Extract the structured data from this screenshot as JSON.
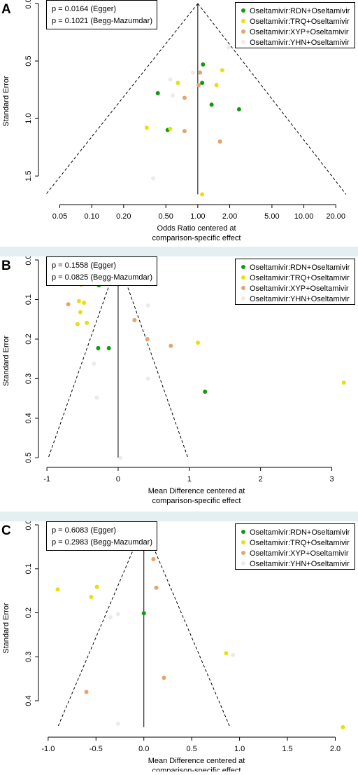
{
  "colors": {
    "RDN": "#109a10",
    "TRQ": "#e8e00a",
    "XYP": "#e3a46e",
    "YHN": "#ebebeb"
  },
  "chart_data": [
    {
      "type": "scatter",
      "panel_label": "A",
      "xlabel": "Odds Ratio centered at",
      "xlabel2": "comparison-specific effect",
      "ylabel": "Standard Error",
      "x_scale": "log",
      "xticks": [
        0.05,
        0.1,
        0.2,
        0.5,
        1.0,
        2.0,
        5.0,
        10.0,
        20.0
      ],
      "xtick_labels": [
        "0.05",
        "0.10",
        "0.20",
        "0.50",
        "1.00",
        "2.00",
        "5.00",
        "10.00",
        "20.00"
      ],
      "xlim": [
        0.035,
        27
      ],
      "yticks": [
        0,
        0.5,
        1,
        1.5
      ],
      "ytick_labels": [
        "0.0",
        "0.5",
        "1.0",
        "1.5"
      ],
      "ylim_reversed": [
        0,
        1.7
      ],
      "funnel": {
        "center": 1.0,
        "apex_se": 0,
        "base_se": 1.66,
        "left": 0.037,
        "right": 25
      },
      "annotations": [
        "p = 0.0164 (Egger)",
        "p = 0.1021 (Begg-Mazumdar)"
      ],
      "legend": [
        "Oseltamivir:RDN+Oseltamivir",
        "Oseltamivir:TRQ+Oseltamivir",
        "Oseltamivir:XYP+Oseltamivir",
        "Oseltamivir:YHN+Oseltamivir"
      ],
      "legend_position": "top-right",
      "series": [
        {
          "name": "Oseltamivir:RDN+Oseltamivir",
          "group": "RDN",
          "points": [
            [
              1.12,
              0.53
            ],
            [
              1.1,
              0.69
            ],
            [
              0.42,
              0.78
            ],
            [
              1.35,
              0.88
            ],
            [
              2.45,
              0.92
            ],
            [
              0.52,
              1.1
            ]
          ]
        },
        {
          "name": "Oseltamivir:TRQ+Oseltamivir",
          "group": "TRQ",
          "points": [
            [
              1.7,
              0.58
            ],
            [
              0.65,
              0.69
            ],
            [
              1.5,
              0.71
            ],
            [
              0.33,
              1.08
            ],
            [
              0.55,
              1.09
            ],
            [
              1.1,
              1.66
            ]
          ]
        },
        {
          "name": "Oseltamivir:XYP+Oseltamivir",
          "group": "XYP",
          "points": [
            [
              1.05,
              0.6
            ],
            [
              1.02,
              0.71
            ],
            [
              0.75,
              0.82
            ],
            [
              0.75,
              1.11
            ],
            [
              1.62,
              1.2
            ]
          ]
        },
        {
          "name": "Oseltamivir:YHN+Oseltamivir",
          "group": "YHN",
          "points": [
            [
              1.95,
              0.38
            ],
            [
              0.9,
              0.6
            ],
            [
              0.55,
              0.66
            ],
            [
              0.58,
              0.8
            ],
            [
              0.38,
              1.52
            ]
          ]
        }
      ]
    },
    {
      "type": "scatter",
      "panel_label": "B",
      "xlabel": "Mean Difference centered at",
      "xlabel2": "comparison-specific effect",
      "ylabel": "Standard Error",
      "x_scale": "linear",
      "xticks": [
        -1,
        0,
        1,
        2,
        3
      ],
      "xtick_labels": [
        "-1",
        "0",
        "1",
        "2",
        "3"
      ],
      "xlim": [
        -1.05,
        3.25
      ],
      "yticks": [
        0,
        0.1,
        0.2,
        0.3,
        0.4,
        0.5
      ],
      "ytick_labels": [
        "0.0",
        "0.1",
        "0.2",
        "0.3",
        "0.4",
        "0.5"
      ],
      "ylim_reversed": [
        0,
        0.51
      ],
      "funnel": {
        "center": 0,
        "apex_se": 0,
        "base_se": 0.5,
        "left": -0.98,
        "right": 0.98
      },
      "annotations": [
        "p = 0.1558 (Egger)",
        "p = 0.0825 (Begg-Mazumdar)"
      ],
      "legend": [
        "Oseltamivir:RDN+Oseltamivir",
        "Oseltamivir:TRQ+Oseltamivir",
        "Oseltamivir:XYP+Oseltamivir",
        "Oseltamivir:YHN+Oseltamivir"
      ],
      "legend_position": "top-right",
      "series": [
        {
          "name": "Oseltamivir:RDN+Oseltamivir",
          "group": "RDN",
          "points": [
            [
              -0.27,
              0.064
            ],
            [
              -0.28,
              0.223
            ],
            [
              -0.13,
              0.223
            ],
            [
              1.22,
              0.333
            ]
          ]
        },
        {
          "name": "Oseltamivir:TRQ+Oseltamivir",
          "group": "TRQ",
          "points": [
            [
              -0.55,
              0.104
            ],
            [
              -0.48,
              0.108
            ],
            [
              -0.53,
              0.132
            ],
            [
              -0.44,
              0.159
            ],
            [
              -0.57,
              0.162
            ],
            [
              1.12,
              0.209
            ],
            [
              3.17,
              0.31
            ]
          ]
        },
        {
          "name": "Oseltamivir:XYP+Oseltamivir",
          "group": "XYP",
          "points": [
            [
              -0.52,
              0.062
            ],
            [
              -0.7,
              0.112
            ],
            [
              0.23,
              0.152
            ],
            [
              0.41,
              0.2
            ],
            [
              0.74,
              0.217
            ]
          ]
        },
        {
          "name": "Oseltamivir:YHN+Oseltamivir",
          "group": "YHN",
          "points": [
            [
              0.42,
              0.115
            ],
            [
              -0.34,
              0.262
            ],
            [
              0.42,
              0.3
            ],
            [
              -0.3,
              0.348
            ],
            [
              0.03,
              0.5
            ]
          ]
        }
      ]
    },
    {
      "type": "scatter",
      "panel_label": "C",
      "xlabel": "Mean Difference centered at",
      "xlabel2": "comparison-specific effect",
      "ylabel": "Standard Error",
      "x_scale": "linear",
      "xticks": [
        -1.0,
        -0.5,
        0.0,
        0.5,
        1.0,
        1.5,
        2.0
      ],
      "xtick_labels": [
        "-1.0",
        "-0.5",
        "0.0",
        "0.5",
        "1.0",
        "1.5",
        "2.0"
      ],
      "xlim": [
        -1.05,
        2.15
      ],
      "yticks": [
        0,
        0.1,
        0.2,
        0.3,
        0.4
      ],
      "ytick_labels": [
        "0.0",
        "0.1",
        "0.2",
        "0.3",
        "0.4"
      ],
      "ylim_reversed": [
        0,
        0.47
      ],
      "funnel": {
        "center": 0,
        "apex_se": 0,
        "base_se": 0.46,
        "left": -0.9,
        "right": 0.9
      },
      "annotations": [
        "p = 0.6083 (Egger)",
        "p = 0.2983 (Begg-Mazumdar)"
      ],
      "legend": [
        "Oseltamivir:RDN+Oseltamivir",
        "Oseltamivir:TRQ+Oseltamivir",
        "Oseltamivir:XYP+Oseltamivir",
        "Oseltamivir:YHN+Oseltamivir"
      ],
      "legend_position": "top-right",
      "series": [
        {
          "name": "Oseltamivir:RDN+Oseltamivir",
          "group": "RDN",
          "points": [
            [
              0.0,
              0.201
            ]
          ]
        },
        {
          "name": "Oseltamivir:TRQ+Oseltamivir",
          "group": "TRQ",
          "points": [
            [
              -0.9,
              0.147
            ],
            [
              -0.49,
              0.141
            ],
            [
              -0.55,
              0.164
            ],
            [
              0.86,
              0.292
            ],
            [
              2.08,
              0.46
            ]
          ]
        },
        {
          "name": "Oseltamivir:XYP+Oseltamivir",
          "group": "XYP",
          "points": [
            [
              0.1,
              0.078
            ],
            [
              0.13,
              0.143
            ],
            [
              0.21,
              0.348
            ],
            [
              -0.6,
              0.38
            ]
          ]
        },
        {
          "name": "Oseltamivir:YHN+Oseltamivir",
          "group": "YHN",
          "points": [
            [
              -0.35,
              0.21
            ],
            [
              -0.27,
              0.203
            ],
            [
              0.93,
              0.296
            ],
            [
              -0.27,
              0.452
            ]
          ]
        }
      ]
    }
  ]
}
